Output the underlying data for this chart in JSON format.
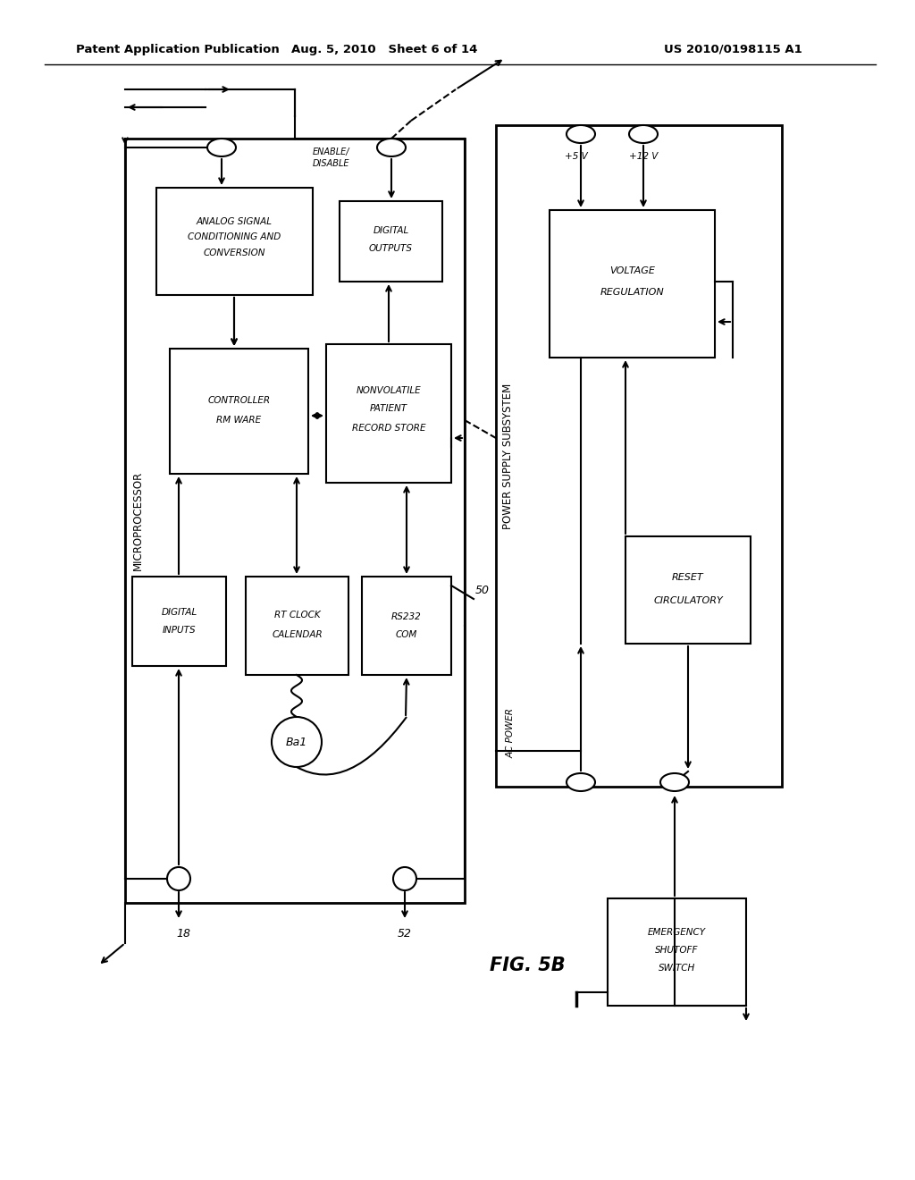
{
  "header_left": "Patent Application Publication",
  "header_mid": "Aug. 5, 2010   Sheet 6 of 14",
  "header_right": "US 2010/0198115 A1",
  "fig_label": "FIG. 5B",
  "background": "#ffffff",
  "note_18": "18",
  "note_52": "52",
  "note_50": "50"
}
